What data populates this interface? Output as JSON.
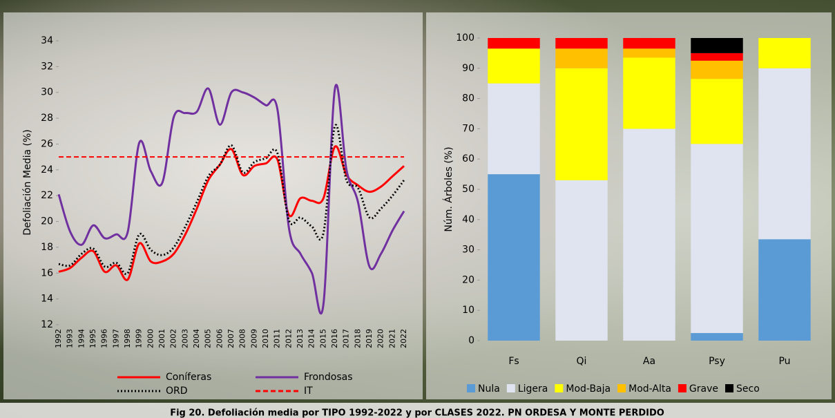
{
  "chart_data": [
    {
      "type": "line",
      "ylabel": "Defoliación Media (%)",
      "categories": [
        "1992",
        "1993",
        "1994",
        "1995",
        "1996",
        "1997",
        "1998",
        "1999",
        "2000",
        "2001",
        "2002",
        "2003",
        "2004",
        "2005",
        "2006",
        "2007",
        "2008",
        "2009",
        "2010",
        "2011",
        "2012",
        "2013",
        "2014",
        "2015",
        "2016",
        "2017",
        "2018",
        "2019",
        "2020",
        "2021",
        "2022"
      ],
      "series": [
        {
          "name": "Coníferas",
          "color": "#ff0000",
          "dash": "none",
          "values": [
            16.1,
            16.4,
            17.2,
            17.7,
            16.1,
            16.6,
            15.5,
            18.3,
            16.9,
            16.9,
            17.5,
            19.0,
            21.0,
            23.2,
            24.4,
            25.6,
            23.6,
            24.3,
            24.5,
            24.8,
            20.5,
            21.8,
            21.6,
            21.8,
            25.8,
            23.6,
            22.8,
            22.3,
            22.7,
            23.5,
            24.3
          ]
        },
        {
          "name": "Frondosas",
          "color": "#7030a0",
          "dash": "none",
          "values": [
            22.1,
            19.2,
            18.2,
            19.7,
            18.7,
            19.0,
            19.2,
            26.1,
            23.9,
            23.0,
            28.1,
            28.4,
            28.5,
            30.3,
            27.5,
            30.0,
            30.0,
            29.6,
            29.0,
            28.7,
            19.5,
            17.5,
            16.0,
            13.6,
            30.3,
            24.0,
            21.5,
            16.5,
            17.5,
            19.3,
            20.8
          ]
        },
        {
          "name": "ORD",
          "color": "#000000",
          "dash": "2,3",
          "values": [
            16.7,
            16.6,
            17.5,
            17.9,
            16.5,
            16.8,
            16.0,
            19.0,
            17.8,
            17.4,
            18.0,
            19.6,
            21.5,
            23.5,
            24.4,
            25.9,
            23.8,
            24.6,
            24.9,
            25.3,
            20.1,
            20.3,
            19.6,
            19.1,
            27.4,
            23.2,
            22.6,
            20.3,
            21.0,
            22.0,
            23.2
          ]
        },
        {
          "name": "IT",
          "color": "#ff0000",
          "dash": "7,4",
          "values": [
            25,
            25,
            25,
            25,
            25,
            25,
            25,
            25,
            25,
            25,
            25,
            25,
            25,
            25,
            25,
            25,
            25,
            25,
            25,
            25,
            25,
            25,
            25,
            25,
            25,
            25,
            25,
            25,
            25,
            25,
            25
          ]
        }
      ],
      "ylim": [
        12,
        34
      ],
      "yticks": [
        12,
        14,
        16,
        18,
        20,
        22,
        24,
        26,
        28,
        30,
        32,
        34
      ],
      "grid": false
    },
    {
      "type": "bar",
      "ylabel": "Núm. Árboles (%)",
      "categories": [
        "Fs",
        "Qi",
        "Aa",
        "Psy",
        "Pu"
      ],
      "series": [
        {
          "name": "Nula",
          "color": "#5b9bd5",
          "values": [
            55,
            0,
            0,
            2.5,
            33.5
          ]
        },
        {
          "name": "Ligera",
          "color": "#dfe4f0",
          "values": [
            30,
            53,
            70,
            62.5,
            56.5
          ]
        },
        {
          "name": "Mod-Baja",
          "color": "#ffff00",
          "values": [
            11.5,
            37,
            23.5,
            21.5,
            10
          ]
        },
        {
          "name": "Mod-Alta",
          "color": "#ffc000",
          "values": [
            0,
            6.5,
            3,
            6,
            0
          ]
        },
        {
          "name": "Grave",
          "color": "#ff0000",
          "values": [
            3.5,
            3.5,
            3.5,
            2.5,
            0
          ]
        },
        {
          "name": "Seco",
          "color": "#000000",
          "values": [
            0,
            0,
            0,
            5,
            0
          ]
        }
      ],
      "ylim": [
        0,
        100
      ],
      "yticks": [
        0,
        10,
        20,
        30,
        40,
        50,
        60,
        70,
        80,
        90,
        100
      ],
      "grid": false
    }
  ],
  "caption": "Fig 20. Defoliación media por TIPO 1992-2022 y por CLASES 2022. PN ORDESA Y MONTE PERDIDO"
}
